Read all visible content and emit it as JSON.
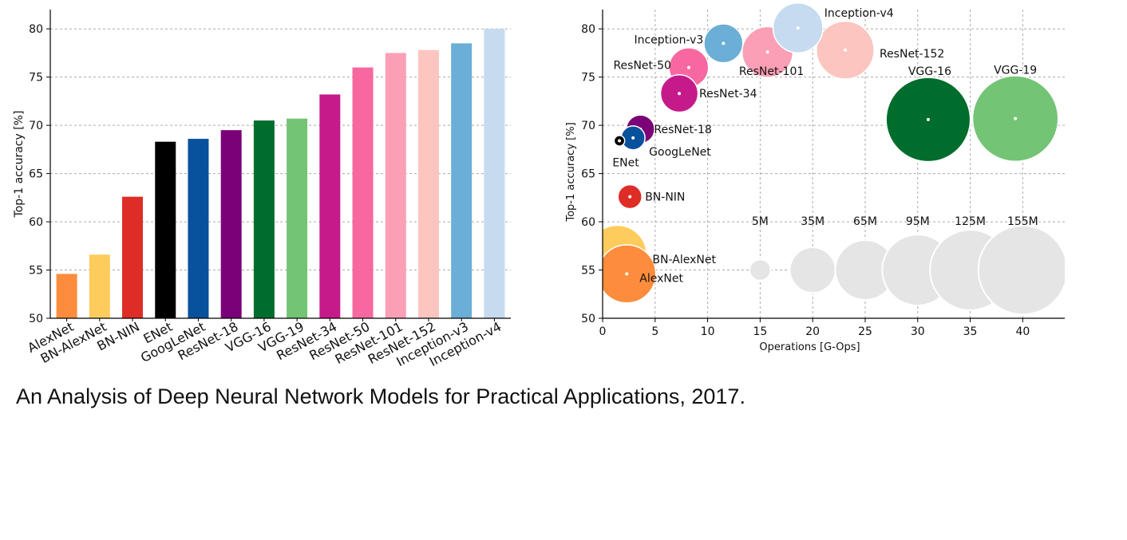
{
  "caption": "An Analysis of Deep Neural Network Models for Practical Applications, 2017.",
  "chart_data": [
    {
      "type": "bar",
      "title": "",
      "xlabel": "",
      "ylabel": "Top-1 accuracy [%]",
      "ylim": [
        50,
        82
      ],
      "yticks": [
        50,
        55,
        60,
        65,
        70,
        75,
        80
      ],
      "grid": true,
      "categories": [
        "AlexNet",
        "BN-AlexNet",
        "BN-NIN",
        "ENet",
        "GoogLeNet",
        "ResNet-18",
        "VGG-16",
        "VGG-19",
        "ResNet-34",
        "ResNet-50",
        "ResNet-101",
        "ResNet-152",
        "Inception-v3",
        "Inception-v4"
      ],
      "values": [
        54.6,
        56.6,
        62.6,
        68.3,
        68.6,
        69.5,
        70.5,
        70.7,
        73.2,
        76.0,
        77.5,
        77.8,
        78.5,
        80.0
      ],
      "colors": [
        "#fd8d3c",
        "#fecc5c",
        "#de2d26",
        "#000000",
        "#08519c",
        "#7a0177",
        "#006d2c",
        "#74c476",
        "#c51b8a",
        "#f768a1",
        "#fa9fb5",
        "#fcc5c0",
        "#6baed6",
        "#c6dbef"
      ]
    },
    {
      "type": "scatter",
      "title": "",
      "xlabel": "Operations [G-Ops]",
      "ylabel": "Top-1 accuracy [%]",
      "xlim": [
        0,
        44
      ],
      "ylim": [
        50,
        82
      ],
      "xticks": [
        0,
        5,
        10,
        15,
        20,
        25,
        30,
        35,
        40
      ],
      "yticks": [
        50,
        55,
        60,
        65,
        70,
        75,
        80
      ],
      "grid": true,
      "points": [
        {
          "label": "AlexNet",
          "x": 2.3,
          "y": 54.6,
          "params_m": 61,
          "color": "#fd8d3c"
        },
        {
          "label": "BN-AlexNet",
          "x": 1.4,
          "y": 56.6,
          "params_m": 62,
          "color": "#fecc5c"
        },
        {
          "label": "BN-NIN",
          "x": 2.6,
          "y": 62.6,
          "params_m": 7,
          "color": "#de2d26"
        },
        {
          "label": "ENet",
          "x": 1.6,
          "y": 68.4,
          "params_m": 0.4,
          "color": "#000000"
        },
        {
          "label": "GoogLeNet",
          "x": 2.9,
          "y": 68.7,
          "params_m": 7,
          "color": "#08519c"
        },
        {
          "label": "ResNet-18",
          "x": 3.6,
          "y": 69.6,
          "params_m": 11,
          "color": "#7a0177"
        },
        {
          "label": "VGG-16",
          "x": 31.0,
          "y": 70.6,
          "params_m": 138,
          "color": "#006d2c"
        },
        {
          "label": "VGG-19",
          "x": 39.3,
          "y": 70.7,
          "params_m": 143,
          "color": "#74c476"
        },
        {
          "label": "ResNet-34",
          "x": 7.3,
          "y": 73.3,
          "params_m": 22,
          "color": "#c51b8a"
        },
        {
          "label": "ResNet-50",
          "x": 8.2,
          "y": 76.0,
          "params_m": 25,
          "color": "#f768a1"
        },
        {
          "label": "ResNet-101",
          "x": 15.7,
          "y": 77.6,
          "params_m": 45,
          "color": "#fa9fb5"
        },
        {
          "label": "ResNet-152",
          "x": 23.1,
          "y": 77.8,
          "params_m": 60,
          "color": "#fcc5c0"
        },
        {
          "label": "Inception-v3",
          "x": 11.5,
          "y": 78.5,
          "params_m": 24,
          "color": "#6baed6"
        },
        {
          "label": "Inception-v4",
          "x": 18.6,
          "y": 80.1,
          "params_m": 43,
          "color": "#c6dbef"
        }
      ],
      "size_legend": {
        "y": 55,
        "color": "#e5e5e5",
        "items": [
          {
            "label": "5M",
            "x": 15,
            "params_m": 5
          },
          {
            "label": "35M",
            "x": 20,
            "params_m": 35
          },
          {
            "label": "65M",
            "x": 25,
            "params_m": 65
          },
          {
            "label": "95M",
            "x": 30,
            "params_m": 95
          },
          {
            "label": "125M",
            "x": 35,
            "params_m": 125
          },
          {
            "label": "155M",
            "x": 40,
            "params_m": 155
          }
        ]
      }
    }
  ]
}
